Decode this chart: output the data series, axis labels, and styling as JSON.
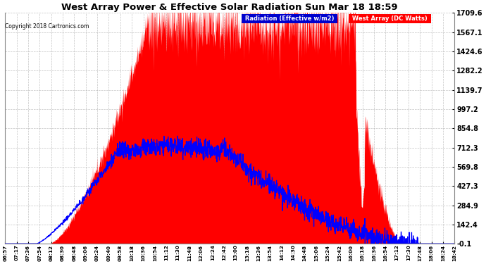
{
  "title": "West Array Power & Effective Solar Radiation Sun Mar 18 18:59",
  "copyright": "Copyright 2018 Cartronics.com",
  "legend_radiation": "Radiation (Effective w/m2)",
  "legend_west": "West Array (DC Watts)",
  "ylim": [
    -0.1,
    1709.6
  ],
  "yticks": [
    -0.1,
    142.4,
    284.9,
    427.3,
    569.8,
    712.3,
    854.8,
    997.2,
    1139.7,
    1282.2,
    1424.6,
    1567.1,
    1709.6
  ],
  "background_color": "#ffffff",
  "plot_bg": "#ffffff",
  "grid_color": "#aaaaaa",
  "red_fill": "#ff0000",
  "blue_line": "#0000ff",
  "xtick_labels": [
    "06:57",
    "07:17",
    "07:36",
    "07:54",
    "08:12",
    "08:30",
    "08:48",
    "09:06",
    "09:24",
    "09:40",
    "09:58",
    "10:18",
    "10:36",
    "10:54",
    "11:12",
    "11:30",
    "11:48",
    "12:06",
    "12:24",
    "12:42",
    "13:00",
    "13:18",
    "13:36",
    "13:54",
    "14:12",
    "14:30",
    "14:48",
    "15:06",
    "15:24",
    "15:42",
    "16:00",
    "16:18",
    "16:36",
    "16:54",
    "17:12",
    "17:30",
    "17:48",
    "18:06",
    "18:24",
    "18:42"
  ]
}
